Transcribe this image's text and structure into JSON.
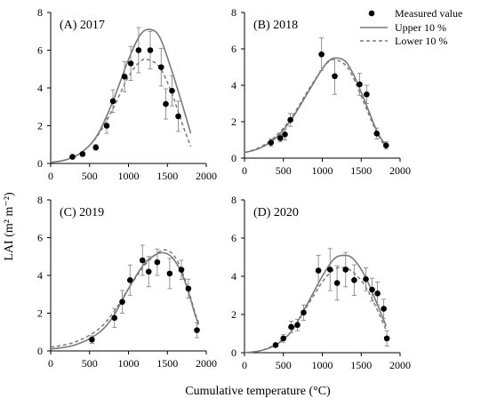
{
  "figure": {
    "ylabel": "LAI (m² m⁻²)",
    "xlabel": "Cumulative temperature (°C)"
  },
  "legend": {
    "placement": "top-right",
    "items": [
      {
        "label": "Measured value",
        "kind": "marker",
        "color": "#000000"
      },
      {
        "label": "Upper 10 %",
        "kind": "solid",
        "color": "#7a7a7a"
      },
      {
        "label": "Lower 10 %",
        "kind": "dashed",
        "color": "#7a7a7a"
      }
    ]
  },
  "chart_data": [
    {
      "type": "scatter",
      "title": "(A) 2017",
      "xlim": [
        0,
        2000
      ],
      "ylim": [
        0,
        8
      ],
      "xticks": [
        "0",
        "500",
        "1000",
        "1500",
        "2000"
      ],
      "yticks": [
        "0",
        "2",
        "4",
        "6",
        "8"
      ],
      "measured": [
        {
          "x": 280,
          "y": 0.35,
          "err": 0.05
        },
        {
          "x": 410,
          "y": 0.5,
          "err": 0.1
        },
        {
          "x": 580,
          "y": 0.85,
          "err": 0.15
        },
        {
          "x": 720,
          "y": 2.0,
          "err": 0.4
        },
        {
          "x": 800,
          "y": 3.3,
          "err": 0.6
        },
        {
          "x": 950,
          "y": 4.6,
          "err": 0.8
        },
        {
          "x": 1030,
          "y": 5.3,
          "err": 0.9
        },
        {
          "x": 1130,
          "y": 6.0,
          "err": 1.2
        },
        {
          "x": 1280,
          "y": 6.0,
          "err": 1.0
        },
        {
          "x": 1420,
          "y": 5.1,
          "err": 1.0
        },
        {
          "x": 1480,
          "y": 3.15,
          "err": 0.8
        },
        {
          "x": 1560,
          "y": 3.85,
          "err": 0.8
        },
        {
          "x": 1640,
          "y": 2.5,
          "err": 0.8
        }
      ],
      "upper": [
        {
          "x": 0,
          "y": 0.05
        },
        {
          "x": 200,
          "y": 0.2
        },
        {
          "x": 400,
          "y": 0.6
        },
        {
          "x": 600,
          "y": 1.5
        },
        {
          "x": 800,
          "y": 3.3
        },
        {
          "x": 1000,
          "y": 5.5
        },
        {
          "x": 1150,
          "y": 6.8
        },
        {
          "x": 1270,
          "y": 7.1
        },
        {
          "x": 1400,
          "y": 6.7
        },
        {
          "x": 1550,
          "y": 5.0
        },
        {
          "x": 1700,
          "y": 3.0
        },
        {
          "x": 1800,
          "y": 1.6
        }
      ],
      "lower": [
        {
          "x": 0,
          "y": 0.05
        },
        {
          "x": 200,
          "y": 0.2
        },
        {
          "x": 400,
          "y": 0.6
        },
        {
          "x": 600,
          "y": 1.45
        },
        {
          "x": 800,
          "y": 2.9
        },
        {
          "x": 1000,
          "y": 4.6
        },
        {
          "x": 1150,
          "y": 5.4
        },
        {
          "x": 1250,
          "y": 5.5
        },
        {
          "x": 1400,
          "y": 5.1
        },
        {
          "x": 1550,
          "y": 3.8
        },
        {
          "x": 1700,
          "y": 2.0
        },
        {
          "x": 1800,
          "y": 0.9
        }
      ]
    },
    {
      "type": "scatter",
      "title": "(B) 2018",
      "xlim": [
        0,
        2000
      ],
      "ylim": [
        0,
        8
      ],
      "xticks": [
        "0",
        "500",
        "1000",
        "1500",
        "2000"
      ],
      "yticks": [
        "0",
        "2",
        "4",
        "6",
        "8"
      ],
      "measured": [
        {
          "x": 340,
          "y": 0.85,
          "err": 0.2
        },
        {
          "x": 460,
          "y": 1.1,
          "err": 0.2
        },
        {
          "x": 520,
          "y": 1.3,
          "err": 0.3
        },
        {
          "x": 590,
          "y": 2.1,
          "err": 0.35
        },
        {
          "x": 990,
          "y": 5.7,
          "err": 0.9
        },
        {
          "x": 1160,
          "y": 4.5,
          "err": 1.0
        },
        {
          "x": 1480,
          "y": 4.05,
          "err": 0.6
        },
        {
          "x": 1570,
          "y": 3.5,
          "err": 0.5
        },
        {
          "x": 1700,
          "y": 1.35,
          "err": 0.3
        },
        {
          "x": 1820,
          "y": 0.7,
          "err": 0.2
        }
      ],
      "upper": [
        {
          "x": 0,
          "y": 0.3
        },
        {
          "x": 200,
          "y": 0.55
        },
        {
          "x": 400,
          "y": 1.1
        },
        {
          "x": 600,
          "y": 2.1
        },
        {
          "x": 800,
          "y": 3.5
        },
        {
          "x": 1000,
          "y": 4.9
        },
        {
          "x": 1100,
          "y": 5.4
        },
        {
          "x": 1200,
          "y": 5.5
        },
        {
          "x": 1300,
          "y": 5.3
        },
        {
          "x": 1400,
          "y": 4.6
        },
        {
          "x": 1550,
          "y": 3.1
        },
        {
          "x": 1700,
          "y": 1.5
        },
        {
          "x": 1800,
          "y": 0.8
        }
      ],
      "lower": [
        {
          "x": 0,
          "y": 0.3
        },
        {
          "x": 200,
          "y": 0.6
        },
        {
          "x": 400,
          "y": 1.2
        },
        {
          "x": 600,
          "y": 2.2
        },
        {
          "x": 800,
          "y": 3.6
        },
        {
          "x": 1000,
          "y": 4.9
        },
        {
          "x": 1100,
          "y": 5.35
        },
        {
          "x": 1180,
          "y": 5.4
        },
        {
          "x": 1300,
          "y": 5.1
        },
        {
          "x": 1400,
          "y": 4.4
        },
        {
          "x": 1550,
          "y": 2.9
        },
        {
          "x": 1700,
          "y": 1.4
        },
        {
          "x": 1800,
          "y": 0.7
        }
      ]
    },
    {
      "type": "scatter",
      "title": "(C) 2019",
      "xlim": [
        0,
        2000
      ],
      "ylim": [
        0,
        8
      ],
      "xticks": [
        "0",
        "500",
        "1000",
        "1500",
        "2000"
      ],
      "yticks": [
        "0",
        "2",
        "4",
        "6",
        "8"
      ],
      "measured": [
        {
          "x": 530,
          "y": 0.6,
          "err": 0.2
        },
        {
          "x": 820,
          "y": 1.75,
          "err": 0.5
        },
        {
          "x": 920,
          "y": 2.6,
          "err": 0.6
        },
        {
          "x": 1020,
          "y": 3.75,
          "err": 0.8
        },
        {
          "x": 1180,
          "y": 4.8,
          "err": 0.8
        },
        {
          "x": 1260,
          "y": 4.2,
          "err": 0.8
        },
        {
          "x": 1370,
          "y": 4.7,
          "err": 0.7
        },
        {
          "x": 1530,
          "y": 4.1,
          "err": 0.8
        },
        {
          "x": 1680,
          "y": 4.3,
          "err": 0.5
        },
        {
          "x": 1770,
          "y": 3.3,
          "err": 0.5
        },
        {
          "x": 1880,
          "y": 1.1,
          "err": 0.4
        }
      ],
      "upper": [
        {
          "x": 0,
          "y": 0.1
        },
        {
          "x": 300,
          "y": 0.3
        },
        {
          "x": 600,
          "y": 0.9
        },
        {
          "x": 800,
          "y": 1.8
        },
        {
          "x": 1000,
          "y": 3.3
        },
        {
          "x": 1200,
          "y": 4.6
        },
        {
          "x": 1350,
          "y": 5.1
        },
        {
          "x": 1450,
          "y": 5.2
        },
        {
          "x": 1550,
          "y": 5.0
        },
        {
          "x": 1650,
          "y": 4.4
        },
        {
          "x": 1750,
          "y": 3.4
        },
        {
          "x": 1850,
          "y": 2.0
        },
        {
          "x": 1900,
          "y": 1.4
        }
      ],
      "lower": [
        {
          "x": 0,
          "y": 0.2
        },
        {
          "x": 300,
          "y": 0.45
        },
        {
          "x": 600,
          "y": 1.1
        },
        {
          "x": 800,
          "y": 2.0
        },
        {
          "x": 1000,
          "y": 3.3
        },
        {
          "x": 1200,
          "y": 4.5
        },
        {
          "x": 1350,
          "y": 5.1
        },
        {
          "x": 1450,
          "y": 5.35
        },
        {
          "x": 1550,
          "y": 5.2
        },
        {
          "x": 1650,
          "y": 4.6
        },
        {
          "x": 1750,
          "y": 3.5
        },
        {
          "x": 1850,
          "y": 2.1
        },
        {
          "x": 1900,
          "y": 1.5
        }
      ]
    },
    {
      "type": "scatter",
      "title": "(D) 2020",
      "xlim": [
        0,
        2000
      ],
      "ylim": [
        0,
        8
      ],
      "xticks": [
        "0",
        "500",
        "1000",
        "1500",
        "2000"
      ],
      "yticks": [
        "0",
        "2",
        "4",
        "6",
        "8"
      ],
      "measured": [
        {
          "x": 400,
          "y": 0.4,
          "err": 0.1
        },
        {
          "x": 500,
          "y": 0.75,
          "err": 0.2
        },
        {
          "x": 600,
          "y": 1.35,
          "err": 0.3
        },
        {
          "x": 680,
          "y": 1.45,
          "err": 0.3
        },
        {
          "x": 760,
          "y": 2.1,
          "err": 0.4
        },
        {
          "x": 950,
          "y": 4.3,
          "err": 0.8
        },
        {
          "x": 1100,
          "y": 4.35,
          "err": 1.1
        },
        {
          "x": 1190,
          "y": 3.65,
          "err": 0.9
        },
        {
          "x": 1300,
          "y": 4.35,
          "err": 0.9
        },
        {
          "x": 1410,
          "y": 3.8,
          "err": 0.8
        },
        {
          "x": 1560,
          "y": 3.85,
          "err": 0.6
        },
        {
          "x": 1640,
          "y": 3.3,
          "err": 0.6
        },
        {
          "x": 1710,
          "y": 3.1,
          "err": 0.6
        },
        {
          "x": 1790,
          "y": 2.3,
          "err": 0.5
        },
        {
          "x": 1830,
          "y": 0.75,
          "err": 0.4
        }
      ],
      "upper": [
        {
          "x": 0,
          "y": 0.0
        },
        {
          "x": 200,
          "y": 0.1
        },
        {
          "x": 400,
          "y": 0.4
        },
        {
          "x": 600,
          "y": 1.1
        },
        {
          "x": 800,
          "y": 2.5
        },
        {
          "x": 1000,
          "y": 4.0
        },
        {
          "x": 1150,
          "y": 4.9
        },
        {
          "x": 1280,
          "y": 5.1
        },
        {
          "x": 1400,
          "y": 4.9
        },
        {
          "x": 1550,
          "y": 4.0
        },
        {
          "x": 1700,
          "y": 2.6
        },
        {
          "x": 1820,
          "y": 1.4
        }
      ],
      "lower": [
        {
          "x": 0,
          "y": 0.0
        },
        {
          "x": 200,
          "y": 0.1
        },
        {
          "x": 400,
          "y": 0.45
        },
        {
          "x": 600,
          "y": 1.1
        },
        {
          "x": 800,
          "y": 2.4
        },
        {
          "x": 1000,
          "y": 3.7
        },
        {
          "x": 1150,
          "y": 4.35
        },
        {
          "x": 1280,
          "y": 4.45
        },
        {
          "x": 1400,
          "y": 4.2
        },
        {
          "x": 1550,
          "y": 3.5
        },
        {
          "x": 1700,
          "y": 2.3
        },
        {
          "x": 1820,
          "y": 1.2
        }
      ]
    }
  ]
}
